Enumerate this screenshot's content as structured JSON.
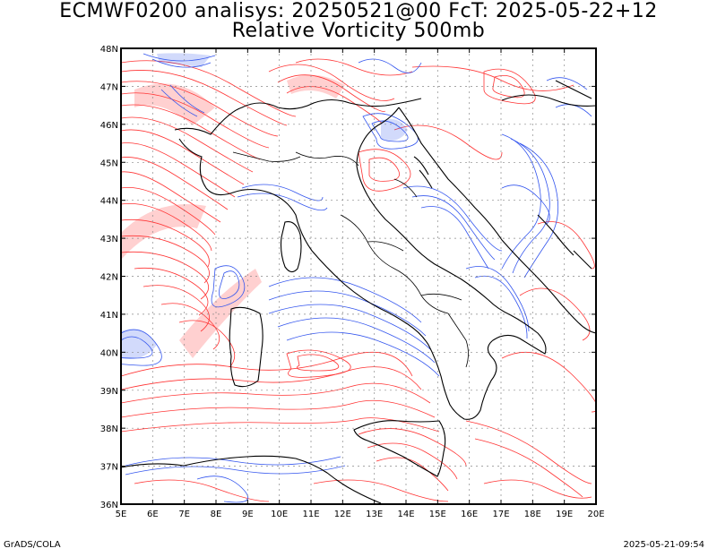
{
  "title": {
    "line1": "ECMWF0200 analisys: 20250521@00 FcT: 2025-05-22+12",
    "line2": "Relative Vorticity 500mb"
  },
  "map": {
    "lon_labels": [
      "5E",
      "6E",
      "7E",
      "8E",
      "9E",
      "10E",
      "11E",
      "12E",
      "13E",
      "14E",
      "15E",
      "16E",
      "17E",
      "18E",
      "19E",
      "20E"
    ],
    "lat_labels": [
      "48N",
      "47N",
      "46N",
      "45N",
      "44N",
      "43N",
      "42N",
      "41N",
      "40N",
      "39N",
      "38N",
      "37N",
      "36N"
    ],
    "lon_range": [
      5,
      20
    ],
    "lat_range": [
      36,
      48
    ],
    "colors": {
      "positive_vorticity": "#ff3333",
      "negative_vorticity": "#3355ee",
      "coastline": "#000000",
      "grid": "#888888"
    }
  },
  "footer": {
    "left": "GrADS/COLA",
    "right": "2025-05-21-09:54"
  }
}
